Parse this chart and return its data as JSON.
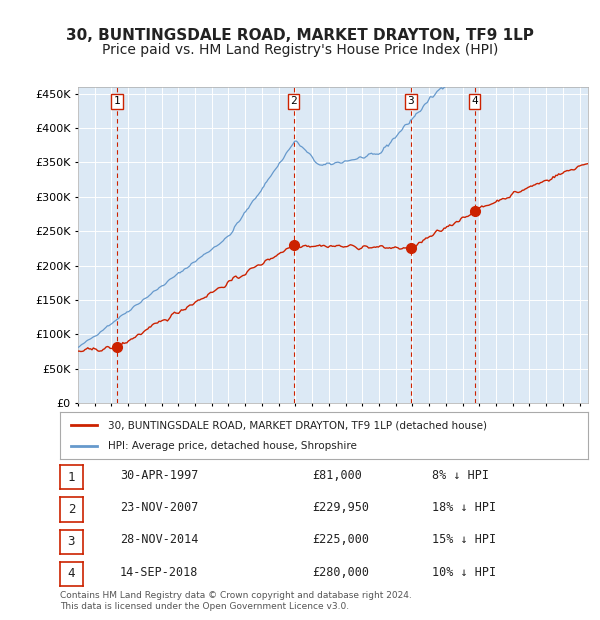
{
  "title": "30, BUNTINGSDALE ROAD, MARKET DRAYTON, TF9 1LP",
  "subtitle": "Price paid vs. HM Land Registry's House Price Index (HPI)",
  "title_fontsize": 11,
  "subtitle_fontsize": 10,
  "background_color": "#dce9f5",
  "plot_bg_color": "#dce9f5",
  "ylabel_ticks": [
    "£0",
    "£50K",
    "£100K",
    "£150K",
    "£200K",
    "£250K",
    "£300K",
    "£350K",
    "£400K",
    "£450K"
  ],
  "ylim": [
    0,
    460000
  ],
  "ytick_values": [
    0,
    50000,
    100000,
    150000,
    200000,
    250000,
    300000,
    350000,
    400000,
    450000
  ],
  "hpi_color": "#6699cc",
  "price_color": "#cc2200",
  "sale_marker_color": "#cc2200",
  "dashed_line_color": "#cc2200",
  "sale_events": [
    {
      "label": "1",
      "date": 1997.33,
      "price": 81000,
      "text": "30-APR-1997",
      "amount": "£81,000",
      "pct": "8% ↓ HPI"
    },
    {
      "label": "2",
      "date": 2007.9,
      "price": 229950,
      "text": "23-NOV-2007",
      "amount": "£229,950",
      "pct": "18% ↓ HPI"
    },
    {
      "label": "3",
      "date": 2014.92,
      "price": 225000,
      "text": "28-NOV-2014",
      "amount": "£225,000",
      "pct": "15% ↓ HPI"
    },
    {
      "label": "4",
      "date": 2018.72,
      "price": 280000,
      "text": "14-SEP-2018",
      "amount": "£280,000",
      "pct": "10% ↓ HPI"
    }
  ],
  "legend_entries": [
    "30, BUNTINGSDALE ROAD, MARKET DRAYTON, TF9 1LP (detached house)",
    "HPI: Average price, detached house, Shropshire"
  ],
  "footer_text": "Contains HM Land Registry data © Crown copyright and database right 2024.\nThis data is licensed under the Open Government Licence v3.0.",
  "xmin": 1995,
  "xmax": 2025.5
}
